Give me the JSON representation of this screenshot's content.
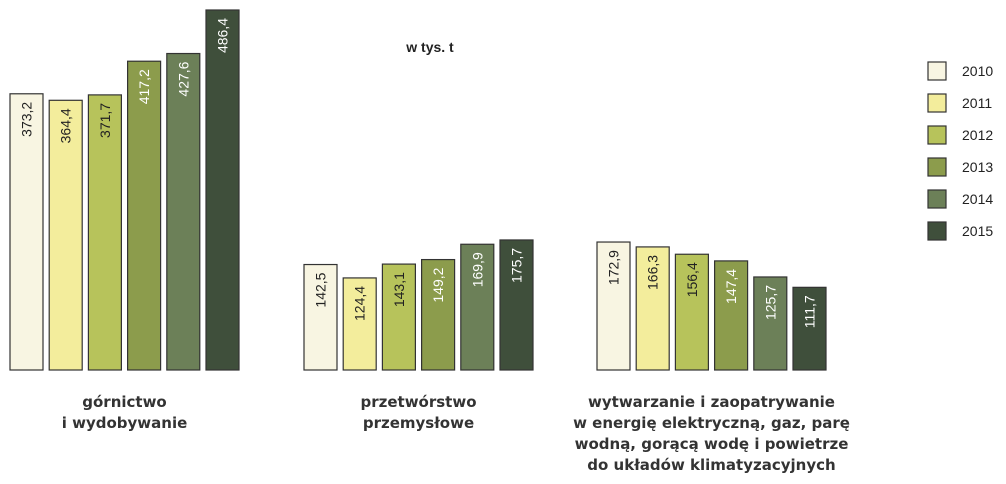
{
  "chart_data": {
    "type": "bar",
    "subtitle": "w tys. t",
    "categories": [
      [
        "górnictwo",
        "i wydobywanie"
      ],
      [
        "przetwórstwo",
        "przemysłowe"
      ],
      [
        "wytwarzanie i zaopatrywanie",
        "w energię elektryczną, gaz, parę",
        "wodną, gorącą wodę i powietrze",
        "do układów klimatyzacyjnych"
      ]
    ],
    "series": [
      {
        "name": "2010",
        "color": "#f8f5e2",
        "values": [
          373.2,
          142.5,
          172.9
        ],
        "value_labels": [
          "373,2",
          "142,5",
          "172,9"
        ]
      },
      {
        "name": "2011",
        "color": "#f3ed9c",
        "values": [
          364.4,
          124.4,
          166.3
        ],
        "value_labels": [
          "364,4",
          "124,4",
          "166,3"
        ]
      },
      {
        "name": "2012",
        "color": "#b7c35b",
        "values": [
          371.7,
          143.1,
          156.4
        ],
        "value_labels": [
          "371,7",
          "143,1",
          "156,4"
        ]
      },
      {
        "name": "2013",
        "color": "#8c9c4c",
        "values": [
          417.2,
          149.2,
          147.4
        ],
        "value_labels": [
          "417,2",
          "149,2",
          "147,4"
        ]
      },
      {
        "name": "2014",
        "color": "#6c8058",
        "values": [
          427.6,
          169.9,
          125.7
        ],
        "value_labels": [
          "427,6",
          "169,9",
          "125,7"
        ]
      },
      {
        "name": "2015",
        "color": "#3f4f3b",
        "values": [
          486.4,
          175.7,
          111.7
        ],
        "value_labels": [
          "486,4",
          "175,7",
          "111,7"
        ]
      }
    ]
  }
}
